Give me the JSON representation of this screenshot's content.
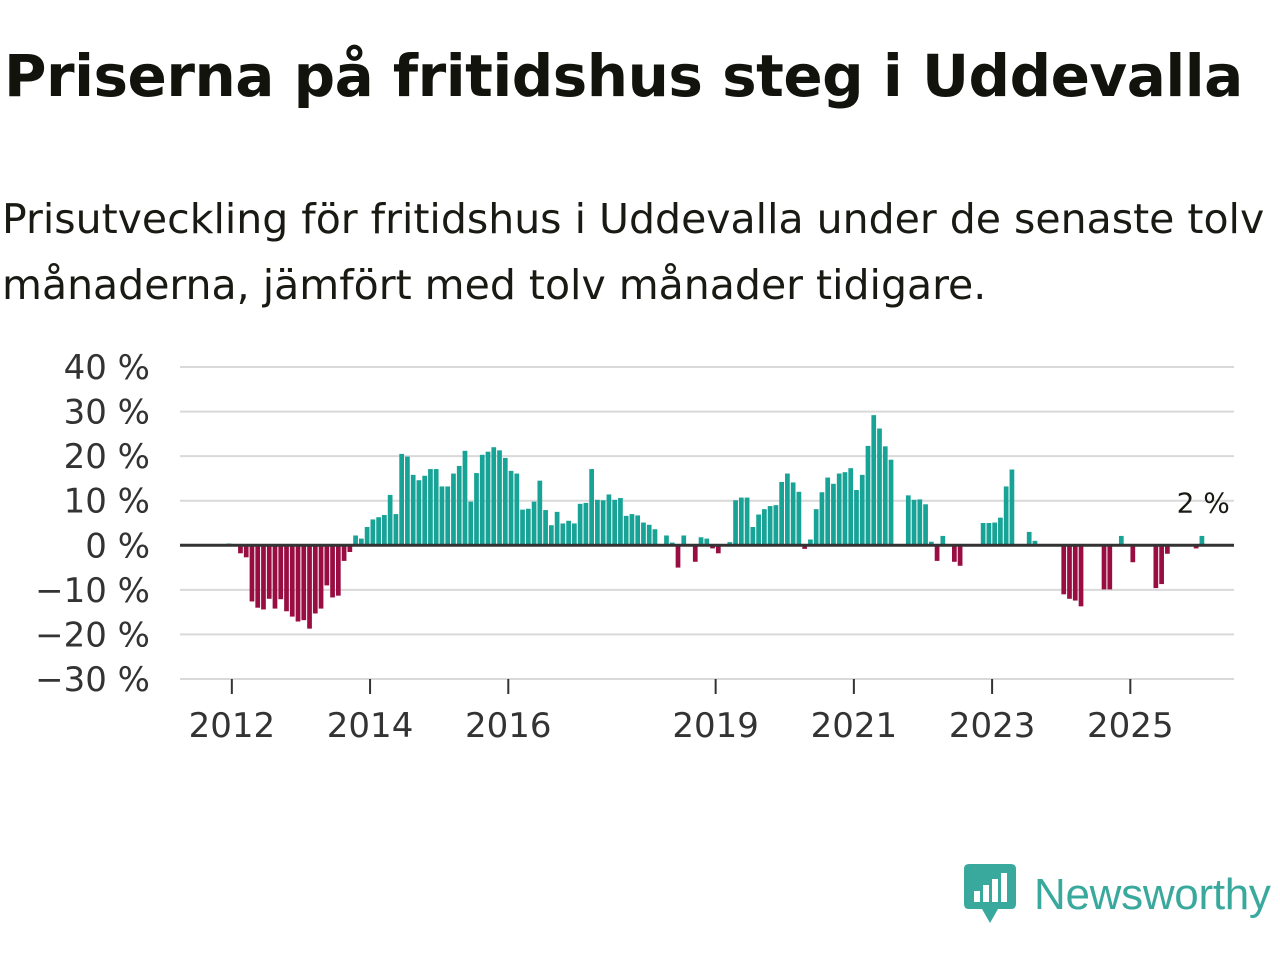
{
  "title": "Priserna på fritidshus steg i Uddevalla",
  "subtitle": "Prisutveckling för fritidshus i Uddevalla under de senaste tolv månaderna, jämfört med tolv månader tidigare.",
  "brand": {
    "name": "Newsworthy",
    "icon": "newsworthy-logo-icon",
    "color": "#3aa99d"
  },
  "colors": {
    "positive": "#18a397",
    "negative": "#990d42",
    "grid": "#d9d9d9",
    "zero": "#333333"
  },
  "chart_data": {
    "type": "bar",
    "title": "Priserna på fritidshus steg i Uddevalla",
    "xlabel": "",
    "ylabel": "",
    "ylim": [
      -30,
      40
    ],
    "y_ticks": [
      40,
      30,
      20,
      10,
      0,
      -10,
      -20,
      -30
    ],
    "y_tick_labels": [
      "40 %",
      "30 %",
      "20 %",
      "10 %",
      "0 %",
      "−10 %",
      "−20 %",
      "−30 %"
    ],
    "x_ticks": [
      2012,
      2014,
      2016,
      2019,
      2021,
      2023,
      2025
    ],
    "x_tick_labels": [
      "2012",
      "2014",
      "2016",
      "2019",
      "2021",
      "2023",
      "2025"
    ],
    "x_range": [
      2011.25,
      2026.5
    ],
    "start": 2011.958,
    "step": 0.0833,
    "annotation": {
      "label": "2 %",
      "value": 2
    },
    "values": [
      0.4,
      0,
      -1.8,
      -2.7,
      -12.6,
      -14,
      -14.4,
      -12,
      -14.2,
      -12.1,
      -14.8,
      -16,
      -17.1,
      -16.8,
      -18.7,
      -15.3,
      -14.2,
      -9,
      -11.7,
      -11.3,
      -3.5,
      -1.5,
      2.2,
      1.5,
      4.1,
      5.8,
      6.3,
      6.8,
      11.3,
      7,
      20.5,
      19.9,
      15.8,
      14.6,
      15.6,
      17.1,
      17.1,
      13.2,
      13.2,
      16.1,
      17.8,
      21.2,
      9.8,
      16.2,
      20.3,
      21,
      22,
      21.3,
      19.6,
      16.7,
      16.1,
      8,
      8.2,
      9.8,
      14.5,
      7.9,
      4.5,
      7.5,
      4.9,
      5.5,
      4.9,
      9.3,
      9.5,
      17.1,
      10.2,
      10.1,
      11.4,
      10.2,
      10.6,
      6.6,
      7,
      6.7,
      5.1,
      4.6,
      3.6,
      0,
      2.2,
      0.6,
      -5,
      2.2,
      0,
      -3.7,
      1.8,
      1.5,
      -0.7,
      -1.8,
      0,
      0.7,
      10.1,
      10.7,
      10.7,
      4.1,
      6.9,
      8.1,
      8.8,
      9,
      14.2,
      16.1,
      14.1,
      12,
      -0.8,
      1.3,
      8.1,
      11.9,
      15.2,
      13.8,
      16.1,
      16.4,
      17.3,
      12.4,
      15.8,
      22.3,
      29.2,
      26.2,
      22.2,
      19.2,
      0,
      0,
      11.2,
      10.2,
      10.3,
      9.2,
      0.8,
      -3.5,
      2.1,
      0,
      -3.7,
      -4.6,
      0,
      0,
      0,
      5,
      5,
      5.1,
      6.2,
      13.2,
      17,
      0,
      0,
      3,
      1,
      0,
      0,
      0,
      0,
      -11,
      -12,
      -12.4,
      -13.7,
      0,
      0,
      0,
      -9.9,
      -9.9,
      0,
      2.1,
      0,
      -3.8,
      0,
      0,
      0,
      -9.6,
      -8.7,
      -1.9,
      0,
      0,
      0,
      0,
      -0.7,
      2.1
    ]
  }
}
